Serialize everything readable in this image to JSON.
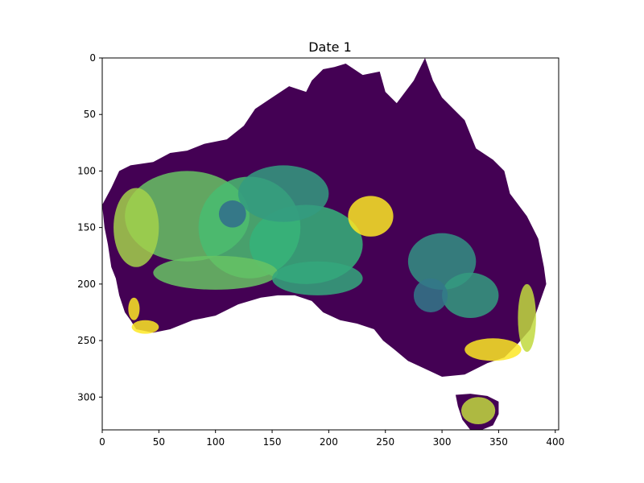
{
  "chart_data": {
    "type": "heatmap",
    "title": "Date 1",
    "xlabel": "",
    "ylabel": "",
    "xlim": [
      0,
      403
    ],
    "ylim": [
      329,
      0
    ],
    "x_ticks": [
      0,
      50,
      100,
      150,
      200,
      250,
      300,
      350,
      400
    ],
    "y_ticks": [
      0,
      50,
      100,
      150,
      200,
      250,
      300
    ],
    "grid": false,
    "colormap": "viridis",
    "colormap_stops": [
      "#440154",
      "#31688e",
      "#35b779",
      "#fde725"
    ],
    "background_color": "#ffffff",
    "regions": [
      {
        "name": "mainland",
        "outline": [
          [
            0,
            130
          ],
          [
            8,
            115
          ],
          [
            15,
            100
          ],
          [
            25,
            95
          ],
          [
            45,
            92
          ],
          [
            60,
            84
          ],
          [
            75,
            82
          ],
          [
            90,
            76
          ],
          [
            110,
            72
          ],
          [
            125,
            60
          ],
          [
            135,
            45
          ],
          [
            150,
            35
          ],
          [
            165,
            25
          ],
          [
            180,
            30
          ],
          [
            185,
            20
          ],
          [
            195,
            10
          ],
          [
            205,
            8
          ],
          [
            215,
            5
          ],
          [
            230,
            15
          ],
          [
            245,
            12
          ],
          [
            250,
            30
          ],
          [
            260,
            40
          ],
          [
            275,
            20
          ],
          [
            285,
            0
          ],
          [
            292,
            20
          ],
          [
            300,
            35
          ],
          [
            310,
            45
          ],
          [
            320,
            55
          ],
          [
            330,
            80
          ],
          [
            345,
            90
          ],
          [
            355,
            100
          ],
          [
            360,
            120
          ],
          [
            375,
            140
          ],
          [
            385,
            160
          ],
          [
            390,
            185
          ],
          [
            392,
            200
          ],
          [
            385,
            220
          ],
          [
            378,
            240
          ],
          [
            365,
            255
          ],
          [
            355,
            265
          ],
          [
            340,
            270
          ],
          [
            320,
            280
          ],
          [
            300,
            282
          ],
          [
            285,
            275
          ],
          [
            270,
            268
          ],
          [
            258,
            258
          ],
          [
            248,
            250
          ],
          [
            240,
            240
          ],
          [
            225,
            235
          ],
          [
            210,
            232
          ],
          [
            195,
            225
          ],
          [
            185,
            215
          ],
          [
            170,
            210
          ],
          [
            155,
            210
          ],
          [
            140,
            212
          ],
          [
            120,
            218
          ],
          [
            100,
            228
          ],
          [
            80,
            232
          ],
          [
            60,
            240
          ],
          [
            45,
            243
          ],
          [
            30,
            240
          ],
          [
            25,
            232
          ],
          [
            20,
            225
          ],
          [
            15,
            210
          ],
          [
            12,
            195
          ],
          [
            8,
            185
          ],
          [
            5,
            165
          ],
          [
            2,
            150
          ]
        ],
        "value": 0.0
      },
      {
        "name": "tasmania",
        "outline": [
          [
            312,
            298
          ],
          [
            325,
            297
          ],
          [
            340,
            299
          ],
          [
            350,
            304
          ],
          [
            350,
            315
          ],
          [
            345,
            325
          ],
          [
            335,
            329
          ],
          [
            325,
            329
          ],
          [
            318,
            320
          ],
          [
            314,
            308
          ]
        ],
        "value": 0.0
      }
    ],
    "patches": [
      {
        "cx": 75,
        "cy": 140,
        "rx": 55,
        "ry": 40,
        "value": 0.75
      },
      {
        "cx": 130,
        "cy": 150,
        "rx": 45,
        "ry": 45,
        "value": 0.7
      },
      {
        "cx": 180,
        "cy": 165,
        "rx": 50,
        "ry": 35,
        "value": 0.65
      },
      {
        "cx": 160,
        "cy": 120,
        "rx": 40,
        "ry": 25,
        "value": 0.55
      },
      {
        "cx": 30,
        "cy": 150,
        "rx": 20,
        "ry": 35,
        "value": 0.85
      },
      {
        "cx": 100,
        "cy": 190,
        "rx": 55,
        "ry": 15,
        "value": 0.75
      },
      {
        "cx": 190,
        "cy": 195,
        "rx": 40,
        "ry": 15,
        "value": 0.6
      },
      {
        "cx": 237,
        "cy": 140,
        "rx": 20,
        "ry": 18,
        "value": 1.0
      },
      {
        "cx": 115,
        "cy": 138,
        "rx": 12,
        "ry": 12,
        "value": 0.35
      },
      {
        "cx": 300,
        "cy": 180,
        "rx": 30,
        "ry": 25,
        "value": 0.5
      },
      {
        "cx": 325,
        "cy": 210,
        "rx": 25,
        "ry": 20,
        "value": 0.55
      },
      {
        "cx": 290,
        "cy": 210,
        "rx": 15,
        "ry": 15,
        "value": 0.4
      },
      {
        "cx": 345,
        "cy": 258,
        "rx": 25,
        "ry": 10,
        "value": 1.0
      },
      {
        "cx": 375,
        "cy": 230,
        "rx": 8,
        "ry": 30,
        "value": 0.9
      },
      {
        "cx": 38,
        "cy": 238,
        "rx": 12,
        "ry": 6,
        "value": 1.0
      },
      {
        "cx": 28,
        "cy": 222,
        "rx": 5,
        "ry": 10,
        "value": 1.0
      },
      {
        "cx": 332,
        "cy": 312,
        "rx": 15,
        "ry": 12,
        "value": 0.9
      }
    ]
  }
}
